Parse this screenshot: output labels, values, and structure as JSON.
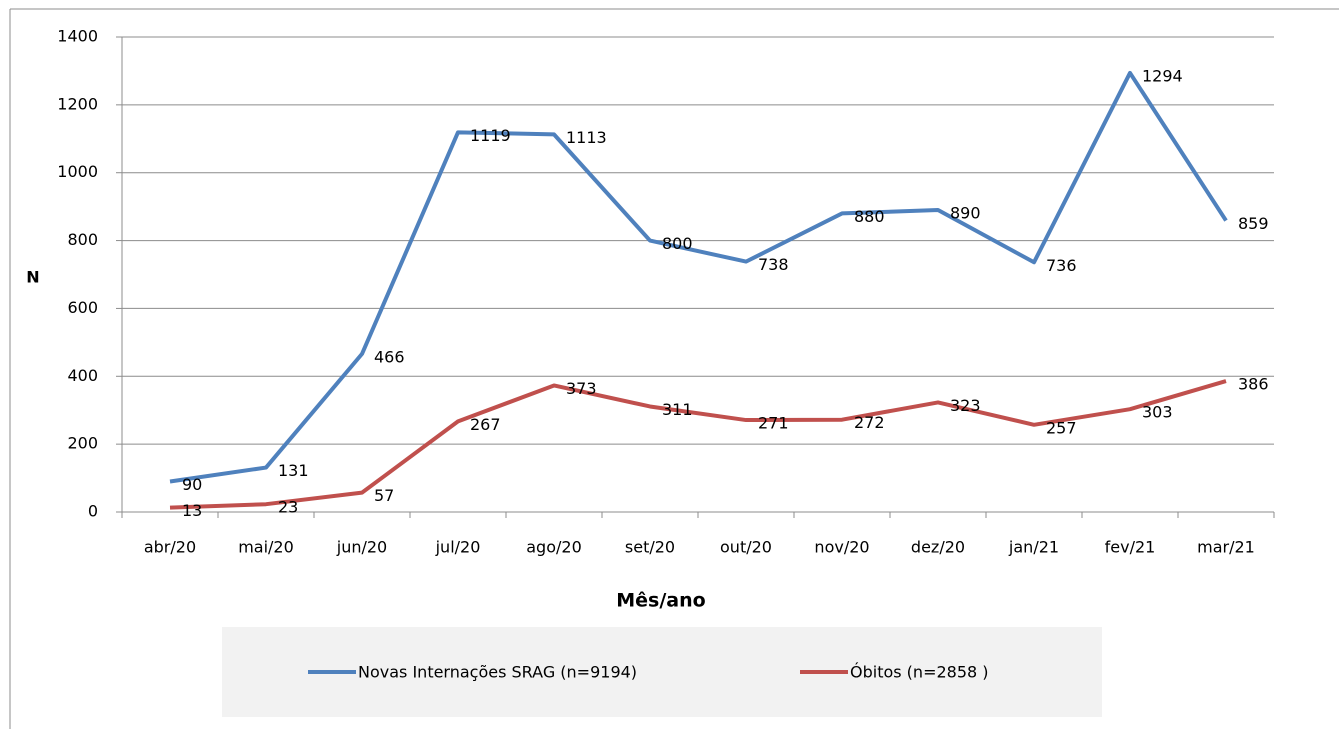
{
  "chart_data": {
    "type": "line",
    "x_label": "Mês/ano",
    "y_label": "N",
    "categories": [
      "abr/20",
      "mai/20",
      "jun/20",
      "jul/20",
      "ago/20",
      "set/20",
      "out/20",
      "nov/20",
      "dez/20",
      "jan/21",
      "fev/21",
      "mar/21"
    ],
    "series": [
      {
        "name": "Novas Internações SRAG (n=9194)",
        "color": "#4f81bd",
        "values": [
          90,
          131,
          466,
          1119,
          1113,
          800,
          738,
          880,
          890,
          736,
          1294,
          859
        ]
      },
      {
        "name": "Óbitos (n=2858 )",
        "color": "#c0504d",
        "values": [
          13,
          23,
          57,
          267,
          373,
          311,
          271,
          272,
          323,
          257,
          303,
          386
        ]
      }
    ],
    "ylim": [
      0,
      1400
    ],
    "yticks": [
      0,
      200,
      400,
      600,
      800,
      1000,
      1200,
      1400
    ],
    "grid": true,
    "legend": "bottom",
    "data_labels": true
  }
}
